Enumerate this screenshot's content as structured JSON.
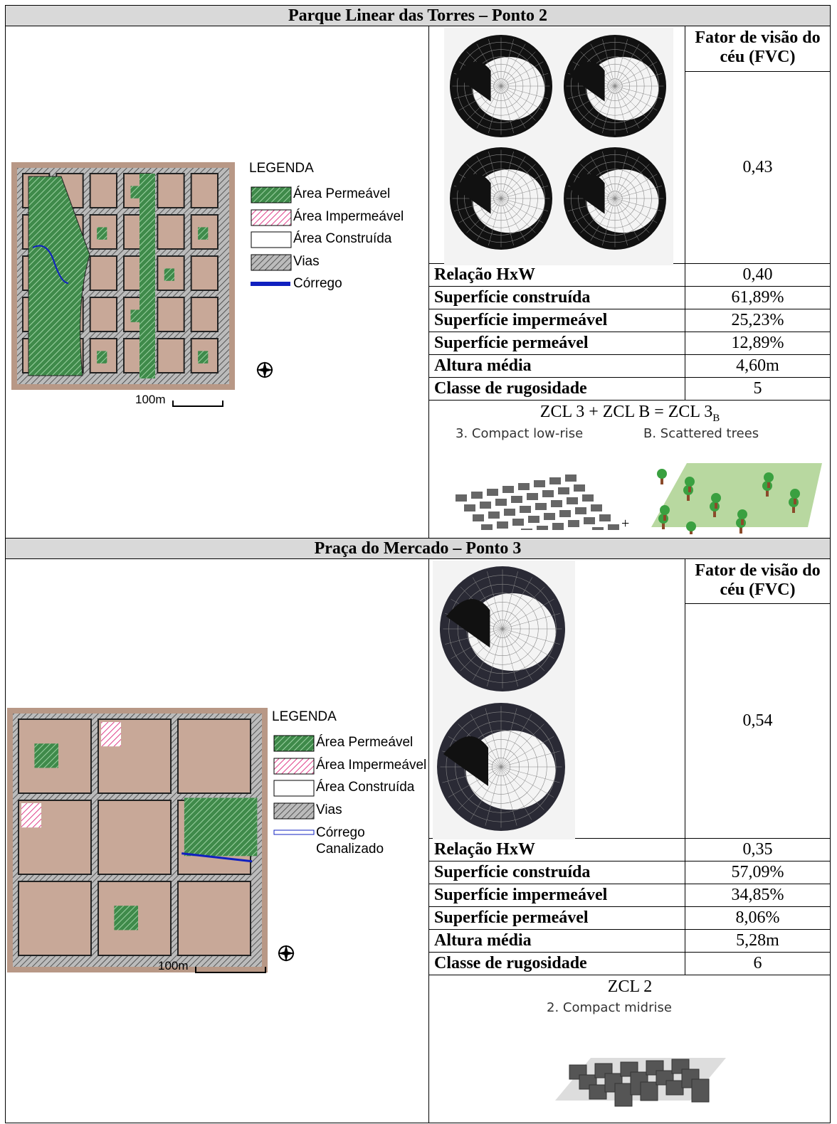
{
  "sections": [
    {
      "title": "Parque Linear das Torres – Ponto 2",
      "legend": {
        "title": "LEGENDA",
        "items": [
          "Área Permeável",
          "Área Impermeável",
          "Área Construída",
          "Vias",
          "Córrego"
        ]
      },
      "scale": "100m",
      "fvc": {
        "label": "Fator de visão do céu (FVC)",
        "value": "0,43"
      },
      "rows": [
        {
          "label": "Relação HxW",
          "value": "0,40"
        },
        {
          "label": "Superfície construída",
          "value": "61,89%"
        },
        {
          "label": "Superfície impermeável",
          "value": "25,23%"
        },
        {
          "label": "Superfície permeável",
          "value": "12,89%"
        },
        {
          "label": "Altura média",
          "value": "4,60m"
        },
        {
          "label": "Classe de rugosidade",
          "value": "5"
        }
      ],
      "zcl": {
        "formula": "ZCL 3 + ZCL B = ZCL 3",
        "subscript": "B",
        "panels": [
          "3. Compact low-rise",
          "B. Scattered trees"
        ],
        "joiner": "+"
      }
    },
    {
      "title": "Praça do Mercado – Ponto 3",
      "legend": {
        "title": "LEGENDA",
        "items": [
          "Área Permeável",
          "Área Impermeável",
          "Área Construída",
          "Vias",
          "Córrego Canalizado"
        ]
      },
      "scale": "100m",
      "fvc": {
        "label": "Fator de visão do céu (FVC)",
        "value": "0,54"
      },
      "rows": [
        {
          "label": "Relação HxW",
          "value": "0,35"
        },
        {
          "label": "Superfície construída",
          "value": "57,09%"
        },
        {
          "label": "Superfície impermeável",
          "value": "34,85%"
        },
        {
          "label": "Superfície permeável",
          "value": "8,06%"
        },
        {
          "label": "Altura média",
          "value": "5,28m"
        },
        {
          "label": "Classe de rugosidade",
          "value": "6"
        }
      ],
      "zcl": {
        "formula": "ZCL 2",
        "panels": [
          "2. Compact midrise"
        ]
      }
    }
  ]
}
